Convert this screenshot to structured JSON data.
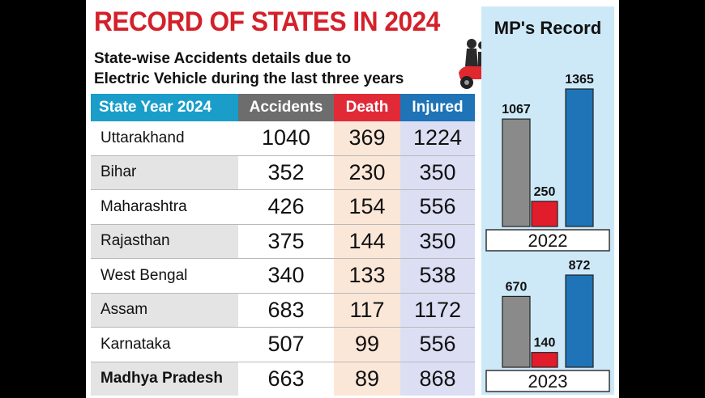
{
  "title": "RECORD OF STATES IN 2024",
  "subtitle_lines": [
    "State-wise Accidents details due to",
    "Electric Vehicle during the last three years"
  ],
  "table": {
    "headers": [
      "State Year 2024",
      "Accidents",
      "Death",
      "Injured"
    ],
    "rows": [
      [
        "Uttarakhand",
        "1040",
        "369",
        "1224"
      ],
      [
        "Bihar",
        "352",
        "230",
        "350"
      ],
      [
        "Maharashtra",
        "426",
        "154",
        "556"
      ],
      [
        "Rajasthan",
        "375",
        "144",
        "350"
      ],
      [
        "West Bengal",
        "340",
        "133",
        "538"
      ],
      [
        "Assam",
        "683",
        "117",
        "1172"
      ],
      [
        "Karnataka",
        "507",
        "99",
        "556"
      ],
      [
        "Madhya Pradesh",
        "663",
        "89",
        "868"
      ]
    ]
  },
  "side_title": "MP's Record",
  "colors": {
    "title_red": "#d4202a",
    "accidents": "#8a8a8a",
    "death": "#e11c2b",
    "injured": "#1f73b7",
    "side_bg": "#cde9f7"
  },
  "chart_data": [
    {
      "type": "bar",
      "title": "2022",
      "categories": [
        "Accidents",
        "Death",
        "Injured"
      ],
      "values": [
        1067,
        250,
        1365
      ],
      "ylim": [
        0,
        1365
      ]
    },
    {
      "type": "bar",
      "title": "2023",
      "categories": [
        "Accidents",
        "Death",
        "Injured"
      ],
      "values": [
        670,
        140,
        872
      ],
      "ylim": [
        0,
        872
      ]
    }
  ]
}
